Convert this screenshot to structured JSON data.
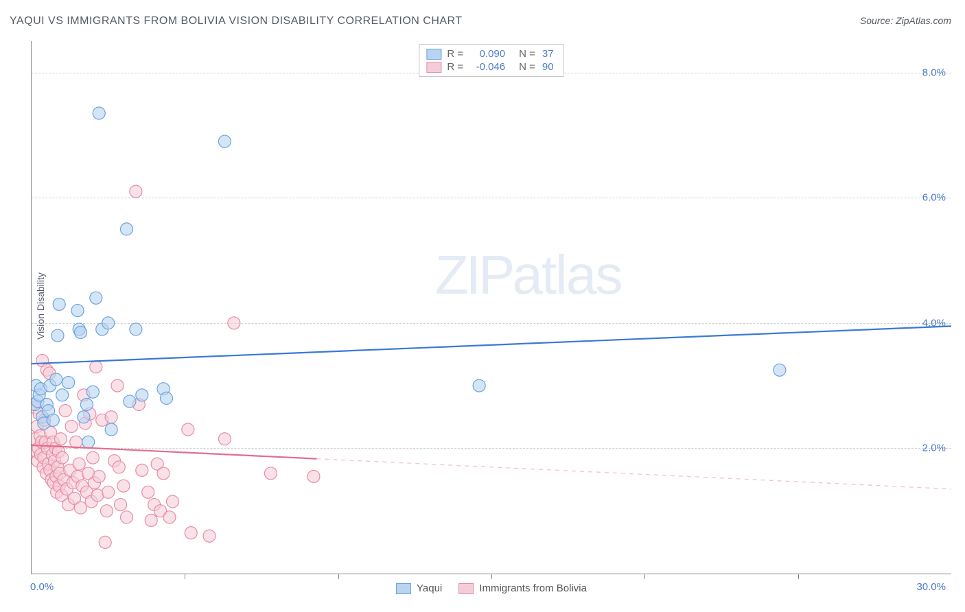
{
  "title": "YAQUI VS IMMIGRANTS FROM BOLIVIA VISION DISABILITY CORRELATION CHART",
  "source_label": "Source: ZipAtlas.com",
  "ylabel": "Vision Disability",
  "watermark_a": "ZIP",
  "watermark_b": "atlas",
  "chart": {
    "type": "scatter-correlation",
    "background_color": "#ffffff",
    "axis_color": "#888888",
    "grid_color": "#d0d0d0",
    "tick_label_color": "#4a7bc8",
    "xlim": [
      0,
      30
    ],
    "ylim": [
      0,
      8.5
    ],
    "y_ticks": [
      2.0,
      4.0,
      6.0,
      8.0
    ],
    "y_tick_labels": [
      "2.0%",
      "4.0%",
      "6.0%",
      "8.0%"
    ],
    "x_minor_ticks": [
      5,
      10,
      15,
      20,
      25
    ],
    "x_start_label": "0.0%",
    "x_end_label": "30.0%",
    "marker_radius": 9,
    "marker_stroke_width": 1.2,
    "trend_line_width": 2.2,
    "series": [
      {
        "id": "yaqui",
        "name": "Yaqui",
        "fill": "#b8d4f0",
        "stroke": "#6ba3e0",
        "line_color": "#3b78d8",
        "line_dash_color": "#3b78d8",
        "R": "0.090",
        "N": "37",
        "trend": {
          "x1": 0,
          "y1": 3.35,
          "x2": 30,
          "y2": 3.95
        },
        "solid_x_max": 30.0,
        "points": [
          [
            0.1,
            2.7
          ],
          [
            0.15,
            3.0
          ],
          [
            0.2,
            2.75
          ],
          [
            0.25,
            2.85
          ],
          [
            0.3,
            2.95
          ],
          [
            0.35,
            2.5
          ],
          [
            0.4,
            2.4
          ],
          [
            0.5,
            2.7
          ],
          [
            0.55,
            2.6
          ],
          [
            0.6,
            3.0
          ],
          [
            0.7,
            2.45
          ],
          [
            0.8,
            3.1
          ],
          [
            0.85,
            3.8
          ],
          [
            0.9,
            4.3
          ],
          [
            1.0,
            2.85
          ],
          [
            1.2,
            3.05
          ],
          [
            1.5,
            4.2
          ],
          [
            1.55,
            3.9
          ],
          [
            1.6,
            3.85
          ],
          [
            1.7,
            2.5
          ],
          [
            1.8,
            2.7
          ],
          [
            1.85,
            2.1
          ],
          [
            2.0,
            2.9
          ],
          [
            2.1,
            4.4
          ],
          [
            2.2,
            7.35
          ],
          [
            2.3,
            3.9
          ],
          [
            2.5,
            4.0
          ],
          [
            2.6,
            2.3
          ],
          [
            3.1,
            5.5
          ],
          [
            3.2,
            2.75
          ],
          [
            3.4,
            3.9
          ],
          [
            3.6,
            2.85
          ],
          [
            4.3,
            2.95
          ],
          [
            4.4,
            2.8
          ],
          [
            6.3,
            6.9
          ],
          [
            14.6,
            3.0
          ],
          [
            24.4,
            3.25
          ]
        ]
      },
      {
        "id": "bolivia",
        "name": "Immigrants from Bolivia",
        "fill": "#f5cdd8",
        "stroke": "#e88ca6",
        "line_color": "#e56b8c",
        "line_dash_color": "#eec7d1",
        "R": "-0.046",
        "N": "90",
        "trend": {
          "x1": 0,
          "y1": 2.05,
          "x2": 30,
          "y2": 1.35
        },
        "solid_x_max": 9.3,
        "points": [
          [
            0.1,
            2.15
          ],
          [
            0.12,
            2.65
          ],
          [
            0.15,
            1.95
          ],
          [
            0.18,
            2.35
          ],
          [
            0.2,
            1.8
          ],
          [
            0.22,
            2.0
          ],
          [
            0.25,
            2.55
          ],
          [
            0.28,
            2.2
          ],
          [
            0.3,
            1.9
          ],
          [
            0.32,
            2.1
          ],
          [
            0.35,
            3.4
          ],
          [
            0.38,
            1.7
          ],
          [
            0.4,
            1.85
          ],
          [
            0.42,
            2.45
          ],
          [
            0.45,
            2.1
          ],
          [
            0.48,
            1.6
          ],
          [
            0.5,
            3.25
          ],
          [
            0.52,
            2.0
          ],
          [
            0.55,
            1.75
          ],
          [
            0.58,
            3.2
          ],
          [
            0.6,
            1.65
          ],
          [
            0.62,
            2.25
          ],
          [
            0.65,
            1.5
          ],
          [
            0.68,
            1.9
          ],
          [
            0.7,
            2.1
          ],
          [
            0.72,
            1.45
          ],
          [
            0.75,
            1.8
          ],
          [
            0.78,
            2.0
          ],
          [
            0.8,
            1.55
          ],
          [
            0.82,
            1.3
          ],
          [
            0.85,
            1.7
          ],
          [
            0.88,
            1.95
          ],
          [
            0.9,
            1.4
          ],
          [
            0.92,
            1.6
          ],
          [
            0.95,
            2.15
          ],
          [
            0.98,
            1.25
          ],
          [
            1.0,
            1.85
          ],
          [
            1.05,
            1.5
          ],
          [
            1.1,
            2.6
          ],
          [
            1.15,
            1.35
          ],
          [
            1.2,
            1.1
          ],
          [
            1.25,
            1.65
          ],
          [
            1.3,
            2.35
          ],
          [
            1.35,
            1.45
          ],
          [
            1.4,
            1.2
          ],
          [
            1.45,
            2.1
          ],
          [
            1.5,
            1.55
          ],
          [
            1.55,
            1.75
          ],
          [
            1.6,
            1.05
          ],
          [
            1.65,
            1.4
          ],
          [
            1.7,
            2.85
          ],
          [
            1.75,
            2.4
          ],
          [
            1.8,
            1.3
          ],
          [
            1.85,
            1.6
          ],
          [
            1.9,
            2.55
          ],
          [
            1.95,
            1.15
          ],
          [
            2.0,
            1.85
          ],
          [
            2.05,
            1.45
          ],
          [
            2.1,
            3.3
          ],
          [
            2.15,
            1.25
          ],
          [
            2.2,
            1.55
          ],
          [
            2.3,
            2.45
          ],
          [
            2.4,
            0.5
          ],
          [
            2.45,
            1.0
          ],
          [
            2.5,
            1.3
          ],
          [
            2.6,
            2.5
          ],
          [
            2.7,
            1.8
          ],
          [
            2.8,
            3.0
          ],
          [
            2.85,
            1.7
          ],
          [
            2.9,
            1.1
          ],
          [
            3.0,
            1.4
          ],
          [
            3.1,
            0.9
          ],
          [
            3.4,
            6.1
          ],
          [
            3.5,
            2.7
          ],
          [
            3.6,
            1.65
          ],
          [
            3.8,
            1.3
          ],
          [
            3.9,
            0.85
          ],
          [
            4.0,
            1.1
          ],
          [
            4.1,
            1.75
          ],
          [
            4.2,
            1.0
          ],
          [
            4.3,
            1.6
          ],
          [
            4.5,
            0.9
          ],
          [
            4.6,
            1.15
          ],
          [
            5.1,
            2.3
          ],
          [
            5.2,
            0.65
          ],
          [
            5.8,
            0.6
          ],
          [
            6.3,
            2.15
          ],
          [
            6.6,
            4.0
          ],
          [
            7.8,
            1.6
          ],
          [
            9.2,
            1.55
          ]
        ]
      }
    ]
  },
  "legend_top": {
    "r_label": "R =",
    "n_label": "N ="
  }
}
